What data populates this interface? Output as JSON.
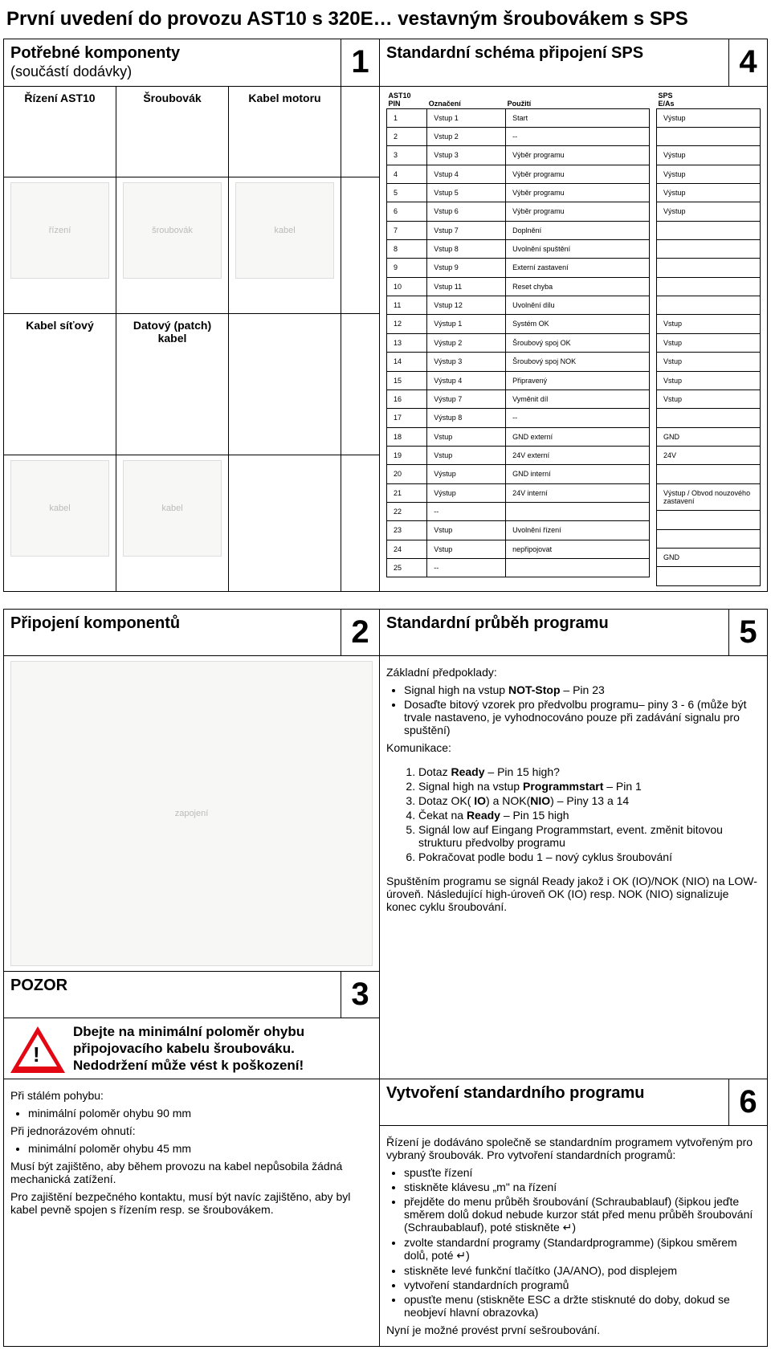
{
  "doc": {
    "title": "První uvedení do provozu AST10 s 320E… vestavným šroubovákem s SPS"
  },
  "sec1": {
    "header": "Potřebné komponenty",
    "sub": "(součástí dodávky)",
    "num": "1",
    "cols": {
      "a": "Řízení AST10",
      "b": "Šroubovák",
      "c": "Kabel motoru",
      "d": "Kabel síťový",
      "e": "Datový (patch) kabel"
    }
  },
  "sec4": {
    "header": "Standardní schéma připojení SPS",
    "num": "4",
    "ast10_title": "AST10",
    "sps_title": "SPS",
    "cols_left": {
      "pin": "PIN",
      "ozn": "Označení",
      "pouz": "Použití"
    },
    "cols_right": {
      "eas": "E/As"
    },
    "rows_left": [
      {
        "p": "1",
        "o": "Vstup 1",
        "u": "Start"
      },
      {
        "p": "2",
        "o": "Vstup 2",
        "u": "--"
      },
      {
        "p": "3",
        "o": "Vstup 3",
        "u": "Výběr programu"
      },
      {
        "p": "4",
        "o": "Vstup 4",
        "u": "Výběr programu"
      },
      {
        "p": "5",
        "o": "Vstup 5",
        "u": "Výběr programu"
      },
      {
        "p": "6",
        "o": "Vstup 6",
        "u": "Výběr programu"
      },
      {
        "p": "7",
        "o": "Vstup 7",
        "u": "Doplnění"
      },
      {
        "p": "8",
        "o": "Vstup 8",
        "u": "Uvolnění spuštění"
      },
      {
        "p": "9",
        "o": "Vstup 9",
        "u": "Externí zastavení"
      },
      {
        "p": "10",
        "o": "Vstup 11",
        "u": "Reset chyba"
      },
      {
        "p": "11",
        "o": "Vstup 12",
        "u": "Uvolnění dílu"
      },
      {
        "p": "12",
        "o": "Výstup 1",
        "u": "Systém OK"
      },
      {
        "p": "13",
        "o": "Výstup 2",
        "u": "Šroubový spoj OK"
      },
      {
        "p": "14",
        "o": "Výstup 3",
        "u": "Šroubový spoj NOK"
      },
      {
        "p": "15",
        "o": "Výstup 4",
        "u": "Připravený"
      },
      {
        "p": "16",
        "o": "Výstup 7",
        "u": "Vyměnit díl"
      },
      {
        "p": "17",
        "o": "Výstup 8",
        "u": "--"
      },
      {
        "p": "18",
        "o": "Vstup",
        "u": "GND externí"
      },
      {
        "p": "19",
        "o": "Vstup",
        "u": "24V externí"
      },
      {
        "p": "20",
        "o": "Výstup",
        "u": "GND interní"
      },
      {
        "p": "21",
        "o": "Výstup",
        "u": "24V interní"
      },
      {
        "p": "22",
        "o": "--",
        "u": ""
      },
      {
        "p": "23",
        "o": "Vstup",
        "u": "Uvolnění řízení"
      },
      {
        "p": "24",
        "o": "Vstup",
        "u": "nepřipojovat"
      },
      {
        "p": "25",
        "o": "--",
        "u": ""
      }
    ],
    "rows_right": [
      {
        "e": "Výstup"
      },
      {
        "e": ""
      },
      {
        "e": "Výstup"
      },
      {
        "e": "Výstup"
      },
      {
        "e": "Výstup"
      },
      {
        "e": "Výstup"
      },
      {
        "e": ""
      },
      {
        "e": ""
      },
      {
        "e": ""
      },
      {
        "e": ""
      },
      {
        "e": ""
      },
      {
        "e": "Vstup"
      },
      {
        "e": "Vstup"
      },
      {
        "e": "Vstup"
      },
      {
        "e": "Vstup"
      },
      {
        "e": "Vstup"
      },
      {
        "e": ""
      },
      {
        "e": "GND"
      },
      {
        "e": "24V"
      },
      {
        "e": ""
      },
      {
        "e": "Výstup / Obvod nouzového zastavení"
      },
      {
        "e": ""
      },
      {
        "e": ""
      },
      {
        "e": "GND"
      },
      {
        "e": ""
      }
    ]
  },
  "sec2": {
    "header": "Připojení komponentů",
    "num": "2"
  },
  "sec5": {
    "header": "Standardní průběh programu",
    "num": "5",
    "pre_label": "Základní předpoklady:",
    "pre_items_html": [
      "Signal high na vstup <b>NOT-Stop</b> – Pin 23",
      "Dosaďte bitový vzorek pro předvolbu programu– piny 3 - 6 (může být trvale nastaveno, je vyhodnocováno pouze při zadávání signalu pro spuštění)"
    ],
    "kom_label": "Komunikace:",
    "kom_items_html": [
      "Dotaz <b>Ready</b> – Pin 15 high?",
      "Signal high na vstup <b>Programmstart</b> – Pin 1",
      "Dotaz OK( <b>IO</b>) a NOK(<b>NIO</b>) – Piny 13 a 14",
      "Čekat na <b>Ready</b> – Pin 15 high",
      "Signál low auf Eingang Programmstart, event. změnit bitovou strukturu předvolby programu",
      "Pokračovat podle bodu 1 – nový cyklus šroubování"
    ],
    "tail": "Spuštěním programu se signál Ready jakož i OK (IO)/NOK (NIO) na LOW-úroveň. Následující high-úroveň OK (IO) resp. NOK (NIO) signalizuje konec cyklu šroubování."
  },
  "sec3": {
    "header": "POZOR",
    "num": "3",
    "warn": "Dbejte na minimální poloměr ohybu připojovacího kabelu šroubováku. Nedodržení může vést k poškození!",
    "p1": "Při stálém pohybu:",
    "p1b": "minimální poloměr ohybu 90 mm",
    "p2": "Při jednorázovém ohnutí:",
    "p2b": "minimální poloměr ohybu 45 mm",
    "p3": "Musí být zajištěno, aby během provozu na kabel nepůsobila žádná mechanická zatížení.",
    "p4": "Pro zajištění bezpečného kontaktu, musí být navíc zajištěno, aby byl kabel pevně spojen s řízením resp. se šroubovákem."
  },
  "sec6": {
    "header": "Vytvoření standardního programu",
    "num": "6",
    "intro": "Řízení je dodáváno společně se standardním programem vytvořeným pro vybraný šroubovák. Pro vytvoření standardních programů:",
    "items": [
      "spusťte řízení",
      "stiskněte klávesu „m\" na řízení",
      "přejděte do menu průběh šroubování (Schraubablauf) (šipkou jeďte směrem dolů dokud nebude kurzor stát před menu průběh šroubování (Schraubablauf), poté stiskněte ↵)",
      "zvolte standardní programy (Standardprogramme) (šipkou směrem dolů, poté ↵)",
      "stiskněte levé funkční tlačítko (JA/ANO), pod displejem",
      "vytvoření standardních programů",
      "opusťte menu (stiskněte ESC a držte stisknuté do doby, dokud se neobjeví hlavní obrazovka)"
    ],
    "tail": "Nyní je možné provést první sešroubování."
  }
}
